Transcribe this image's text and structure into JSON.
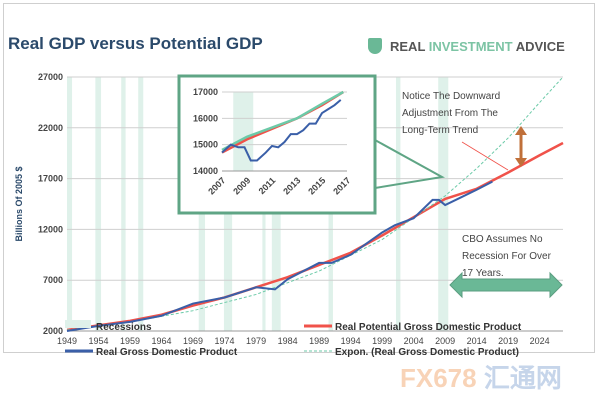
{
  "header": {
    "title": "Real GDP versus Potential GDP",
    "brand_real": "REAL ",
    "brand_inv": "INVESTMENT",
    "brand_adv": " ADVICE"
  },
  "watermark": {
    "a": "FX678",
    "b": "汇通网"
  },
  "colors": {
    "recession": "#dff1ea",
    "potential": "#f0524a",
    "real": "#3a5fa8",
    "expon": "#6ccaa8",
    "arrow_orange": "#c0703a",
    "arrow_green": "#6ab896",
    "inset_border": "#5fa585"
  },
  "annotations": {
    "note1": [
      "Notice The Downward",
      "Adjustment From The",
      "Long-Term Trend"
    ],
    "note2": [
      "CBO Assumes No",
      "Recession For Over",
      "17 Years."
    ]
  },
  "chart_data": [
    {
      "type": "line",
      "title": "Real GDP versus Potential GDP",
      "ylabel": "Billions Of 2005 $",
      "xlim": [
        1949,
        2027.7
      ],
      "ylim": [
        2000,
        27000
      ],
      "yticks": [
        2000,
        7000,
        12000,
        17000,
        22000,
        27000
      ],
      "xticks": [
        1949,
        1954,
        1959,
        1964,
        1969,
        1974,
        1979,
        1984,
        1989,
        1994,
        1999,
        2004,
        2009,
        2014,
        2019,
        2024
      ],
      "grid": true,
      "legend": "bottom",
      "recessions": [
        [
          1948.9,
          1949.8
        ],
        [
          1953.5,
          1954.4
        ],
        [
          1957.6,
          1958.3
        ],
        [
          1960.3,
          1961.1
        ],
        [
          1969.9,
          1970.9
        ],
        [
          1973.9,
          1975.2
        ],
        [
          1980,
          1980.5
        ],
        [
          1981.5,
          1982.9
        ],
        [
          1990.5,
          1991.2
        ],
        [
          2001.2,
          2001.9
        ],
        [
          2007.9,
          2009.5
        ]
      ],
      "legend_entries": [
        "Recessions",
        "Real Potential Gross Domestic Product",
        "Real Gross Domestic Product",
        "Expon. (Real Gross Domestic Product)"
      ],
      "series": [
        {
          "name": "Real Potential Gross Domestic Product",
          "x": [
            1949,
            1954,
            1959,
            1964,
            1969,
            1974,
            1979,
            1984,
            1989,
            1994,
            1999,
            2004,
            2009,
            2014,
            2019,
            2024,
            2027.7
          ],
          "y": [
            2100,
            2550,
            3000,
            3600,
            4500,
            5300,
            6300,
            7300,
            8500,
            9700,
            11400,
            13200,
            15000,
            16000,
            17600,
            19300,
            20500
          ]
        },
        {
          "name": "Real Gross Domestic Product",
          "x": [
            1949,
            1954,
            1959,
            1964,
            1969,
            1974,
            1979,
            1982,
            1984,
            1989,
            1991,
            1994,
            1999,
            2001,
            2004,
            2007,
            2008,
            2009,
            2011,
            2014,
            2016.5
          ],
          "y": [
            2000,
            2500,
            2900,
            3500,
            4700,
            5300,
            6300,
            6100,
            7100,
            8700,
            8700,
            9500,
            11700,
            12400,
            13100,
            14900,
            14900,
            14400,
            15000,
            15900,
            16700
          ]
        },
        {
          "name": "Expon. (Real Gross Domestic Product)",
          "x": [
            1949,
            1959,
            1969,
            1979,
            1989,
            1999,
            2009,
            2014,
            2019,
            2024,
            2027.7
          ],
          "y": [
            2100,
            2900,
            4000,
            5600,
            7900,
            11000,
            15300,
            18000,
            21000,
            24500,
            27000
          ]
        }
      ]
    },
    {
      "type": "line",
      "xlim": [
        2007,
        2017
      ],
      "ylim": [
        14000,
        17000
      ],
      "yticks": [
        14000,
        15000,
        16000,
        17000
      ],
      "xticks": [
        2007,
        2009,
        2011,
        2013,
        2015,
        2017
      ],
      "recessions": [
        [
          2007.9,
          2009.5
        ]
      ],
      "series": [
        {
          "name": "Real Potential Gross Domestic Product",
          "x": [
            2007,
            2009,
            2011,
            2013,
            2015,
            2016.7
          ],
          "y": [
            14700,
            15200,
            15600,
            16000,
            16500,
            17000
          ]
        },
        {
          "name": "Real Gross Domestic Product",
          "x": [
            2007,
            2007.7,
            2008.3,
            2008.8,
            2009.3,
            2009.8,
            2010.5,
            2011,
            2011.5,
            2012,
            2012.5,
            2013,
            2013.5,
            2014,
            2014.5,
            2015,
            2015.5,
            2016,
            2016.5
          ],
          "y": [
            14700,
            15000,
            14900,
            14900,
            14400,
            14400,
            14700,
            14950,
            14900,
            15100,
            15400,
            15400,
            15550,
            15800,
            15800,
            16200,
            16350,
            16500,
            16700
          ]
        },
        {
          "name": "Expon. (Real Gross Domestic Product)",
          "x": [
            2007,
            2009,
            2011,
            2013,
            2015,
            2016.7
          ],
          "y": [
            14800,
            15300,
            15650,
            16000,
            16550,
            17000
          ]
        }
      ]
    }
  ]
}
